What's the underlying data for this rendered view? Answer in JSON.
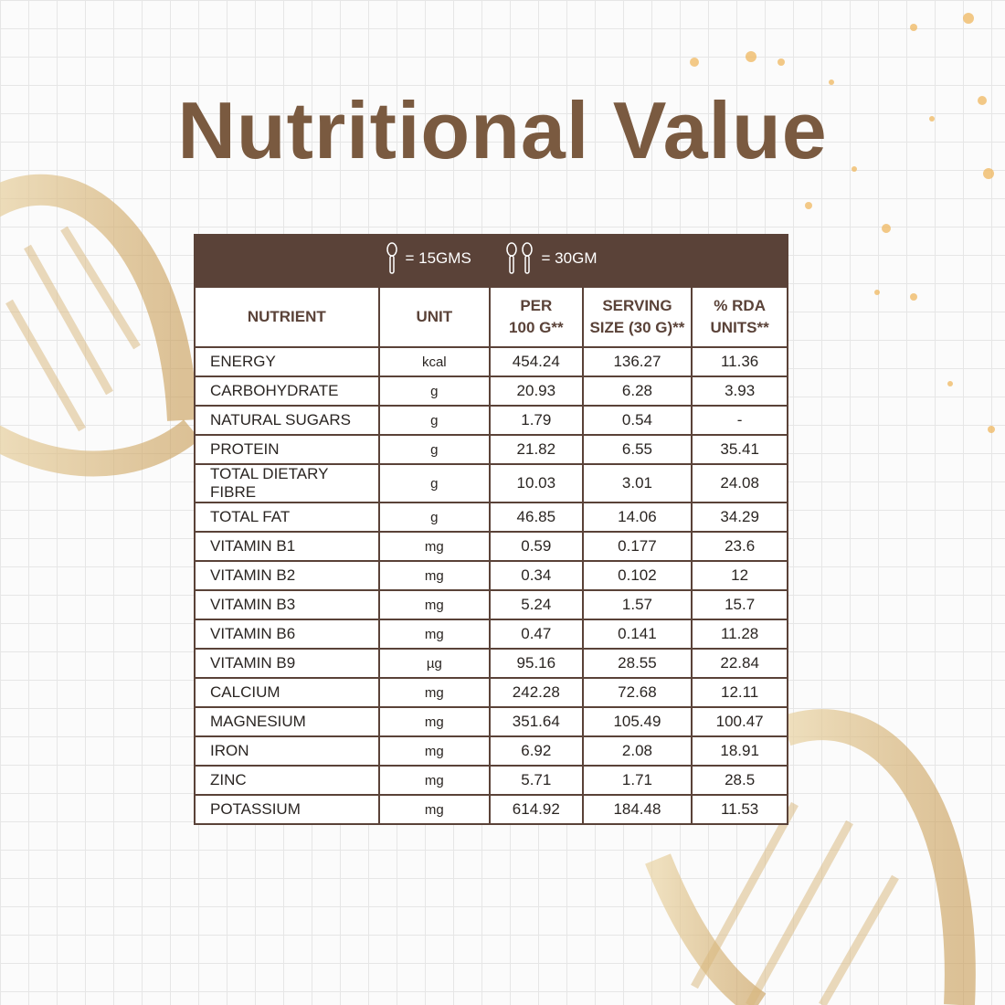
{
  "title": "Nutritional Value",
  "legend": {
    "single": "= 15GMS",
    "double": "= 30GM"
  },
  "table": {
    "header": [
      [
        "NUTRIENT"
      ],
      [
        "UNIT"
      ],
      [
        "PER",
        "100 G**"
      ],
      [
        "SERVING",
        "SIZE (30 G)**"
      ],
      [
        "% RDA",
        "UNITS**"
      ]
    ],
    "rows": [
      [
        "ENERGY",
        "kcal",
        "454.24",
        "136.27",
        "11.36"
      ],
      [
        "CARBOHYDRATE",
        "g",
        "20.93",
        "6.28",
        "3.93"
      ],
      [
        "NATURAL SUGARS",
        "g",
        "1.79",
        "0.54",
        "-"
      ],
      [
        "PROTEIN",
        "g",
        "21.82",
        "6.55",
        "35.41"
      ],
      [
        "TOTAL DIETARY FIBRE",
        "g",
        "10.03",
        "3.01",
        "24.08"
      ],
      [
        "TOTAL FAT",
        "g",
        "46.85",
        "14.06",
        "34.29"
      ],
      [
        "VITAMIN B1",
        "mg",
        "0.59",
        "0.177",
        "23.6"
      ],
      [
        "VITAMIN B2",
        "mg",
        "0.34",
        "0.102",
        "12"
      ],
      [
        "VITAMIN B3",
        "mg",
        "5.24",
        "1.57",
        "15.7"
      ],
      [
        "VITAMIN B6",
        "mg",
        "0.47",
        "0.141",
        "11.28"
      ],
      [
        "VITAMIN B9",
        "µg",
        "95.16",
        "28.55",
        "22.84"
      ],
      [
        "CALCIUM",
        "mg",
        "242.28",
        "72.68",
        "12.11"
      ],
      [
        "MAGNESIUM",
        "mg",
        "351.64",
        "105.49",
        "100.47"
      ],
      [
        "IRON",
        "mg",
        "6.92",
        "2.08",
        "18.91"
      ],
      [
        "ZINC",
        "mg",
        "5.71",
        "1.71",
        "28.5"
      ],
      [
        "POTASSIUM",
        "mg",
        "614.92",
        "184.48",
        "11.53"
      ]
    ]
  }
}
